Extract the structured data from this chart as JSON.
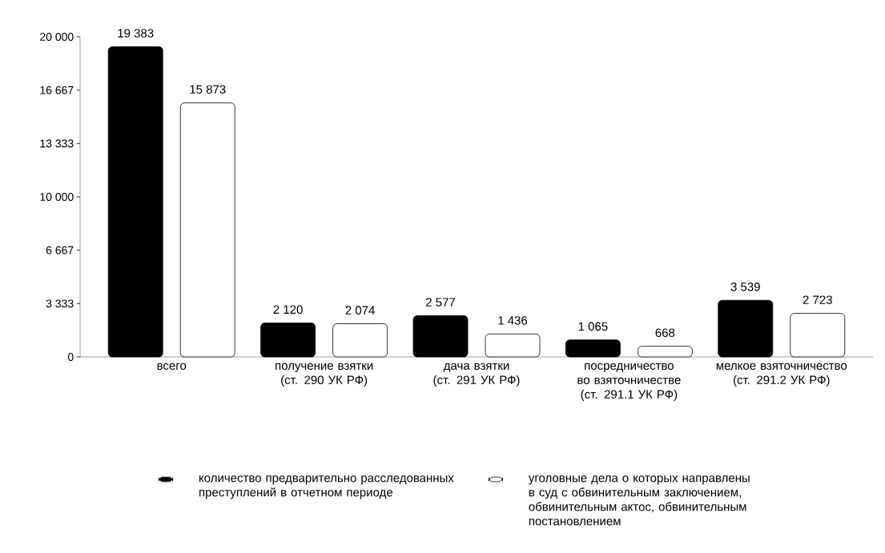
{
  "chart_data": {
    "type": "bar",
    "categories": [
      "всего",
      "получение взятки (ст. 290 УК РФ)",
      "дача взятки (ст. 291 УК РФ)",
      "посредничество во взяточничестве (ст. 291.1 УК РФ)",
      "мелкое взяточничество (ст. 291.2 УК РФ)"
    ],
    "series": [
      {
        "name": "количество предварительно расследованных преступлений в отчетном периоде",
        "color": "#000000",
        "values": [
          19383,
          2120,
          2577,
          1065,
          3539
        ],
        "value_labels": [
          "19 383",
          "2 120",
          "2 577",
          "1 065",
          "3 539"
        ]
      },
      {
        "name": "уголовные дела о которых направлены в суд с обвинительным заключением, обвинительным актос, обвинительным постановлением",
        "color": "#ffffff",
        "values": [
          15873,
          2074,
          1436,
          668,
          2723
        ],
        "value_labels": [
          "15 873",
          "2 074",
          "1 436",
          "668",
          "2 723"
        ]
      }
    ],
    "ylim": [
      0,
      20000
    ],
    "yticks": [
      0,
      {
        "value": 3333,
        "label": "3 333"
      },
      {
        "value": 6667,
        "label": "6 667"
      },
      {
        "value": 10000,
        "label": "10 000"
      },
      {
        "value": 13333,
        "label": "13 333"
      },
      {
        "value": 16667,
        "label": "16 667"
      },
      {
        "value": 20000,
        "label": "20 000"
      }
    ],
    "grid": false,
    "legend": "bottom"
  }
}
